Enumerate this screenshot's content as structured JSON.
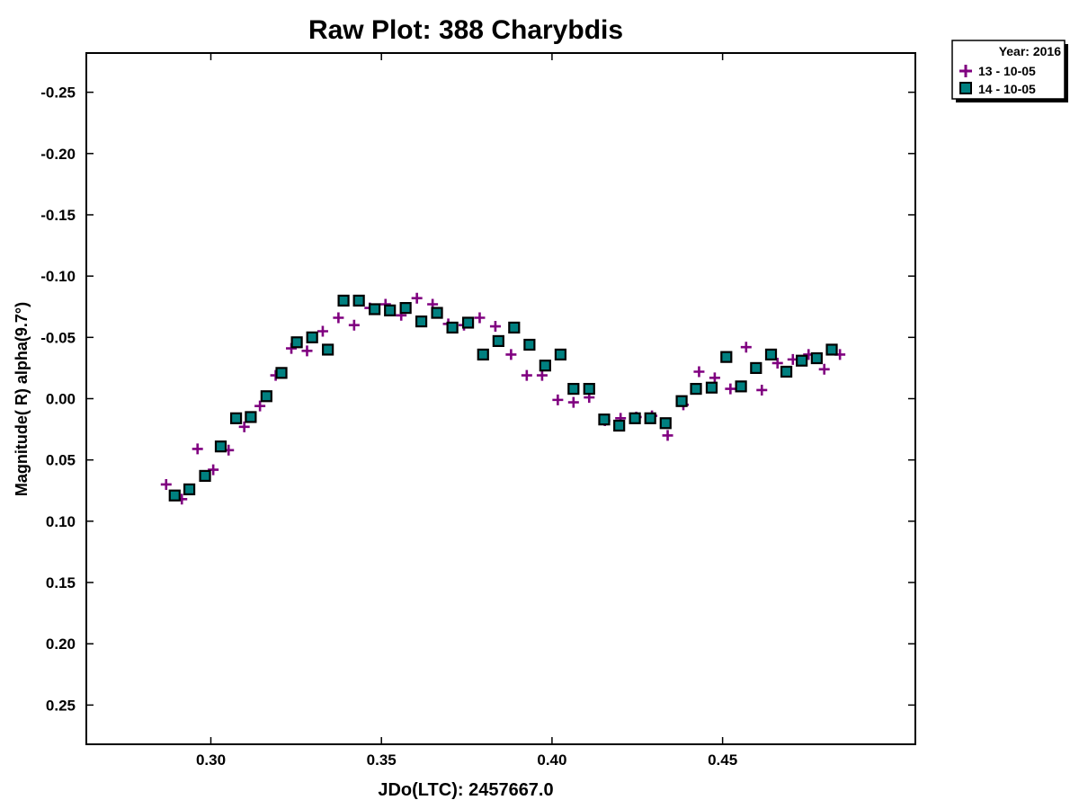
{
  "chart_data": {
    "type": "scatter",
    "title": "Raw Plot: 388 Charybdis",
    "xlabel": "JDo(LTC): 2457667.0",
    "ylabel": "Magnitude( R) alpha(9.7°)",
    "xlim": [
      0.2635,
      0.5065
    ],
    "ylim": [
      0.282,
      -0.282
    ],
    "y_inverted": true,
    "xticks": [
      {
        "value": 0.3,
        "label": "0.30"
      },
      {
        "value": 0.35,
        "label": "0.35"
      },
      {
        "value": 0.4,
        "label": "0.40"
      },
      {
        "value": 0.45,
        "label": "0.45"
      }
    ],
    "yticks": [
      {
        "value": -0.25,
        "label": "-0.25"
      },
      {
        "value": -0.2,
        "label": "-0.20"
      },
      {
        "value": -0.15,
        "label": "-0.15"
      },
      {
        "value": -0.1,
        "label": "-0.10"
      },
      {
        "value": -0.05,
        "label": "-0.05"
      },
      {
        "value": 0.0,
        "label": "0.00"
      },
      {
        "value": 0.05,
        "label": "0.05"
      },
      {
        "value": 0.1,
        "label": "0.10"
      },
      {
        "value": 0.15,
        "label": "0.15"
      },
      {
        "value": 0.2,
        "label": "0.20"
      },
      {
        "value": 0.25,
        "label": "0.25"
      }
    ],
    "grid": false,
    "legend": {
      "placement": "outside-top-right",
      "header": "Year: 2016",
      "entries": [
        "13 - 10-05",
        "14 - 10-05"
      ]
    },
    "series": [
      {
        "name": "13 - 10-05",
        "marker": "plus",
        "color": "#800080",
        "x": [
          0.2869,
          0.2915,
          0.2961,
          0.3007,
          0.3052,
          0.3098,
          0.3144,
          0.319,
          0.3236,
          0.3282,
          0.3328,
          0.3374,
          0.342,
          0.3466,
          0.3512,
          0.3558,
          0.3604,
          0.365,
          0.3696,
          0.3742,
          0.3788,
          0.3834,
          0.388,
          0.3926,
          0.3971,
          0.4017,
          0.4063,
          0.4109,
          0.4155,
          0.4201,
          0.4247,
          0.4293,
          0.4339,
          0.4385,
          0.4431,
          0.4477,
          0.4523,
          0.4569,
          0.4615,
          0.4661,
          0.4706,
          0.4752,
          0.4798,
          0.4844
        ],
        "y": [
          0.07,
          0.082,
          0.041,
          0.058,
          0.042,
          0.023,
          0.006,
          -0.019,
          -0.041,
          -0.039,
          -0.055,
          -0.066,
          -0.06,
          -0.074,
          -0.077,
          -0.068,
          -0.082,
          -0.077,
          -0.061,
          -0.06,
          -0.066,
          -0.059,
          -0.036,
          -0.019,
          -0.019,
          0.001,
          0.003,
          -0.001,
          0.018,
          0.016,
          0.015,
          0.014,
          0.03,
          0.005,
          -0.022,
          -0.017,
          -0.008,
          -0.042,
          -0.007,
          -0.029,
          -0.032,
          -0.036,
          -0.024,
          -0.036
        ]
      },
      {
        "name": "14 - 10-05",
        "marker": "square",
        "color": "#008080",
        "x": [
          0.2894,
          0.2937,
          0.2983,
          0.3029,
          0.3074,
          0.3117,
          0.3163,
          0.3207,
          0.3252,
          0.3297,
          0.3343,
          0.3389,
          0.3434,
          0.348,
          0.3525,
          0.3571,
          0.3617,
          0.3663,
          0.3708,
          0.3754,
          0.3798,
          0.3843,
          0.3889,
          0.3934,
          0.398,
          0.4025,
          0.4063,
          0.4109,
          0.4153,
          0.4197,
          0.4243,
          0.4288,
          0.4333,
          0.438,
          0.4422,
          0.4468,
          0.4511,
          0.4554,
          0.4598,
          0.4642,
          0.4687,
          0.4732,
          0.4776,
          0.482
        ],
        "y": [
          0.079,
          0.074,
          0.063,
          0.039,
          0.016,
          0.015,
          -0.002,
          -0.021,
          -0.046,
          -0.05,
          -0.04,
          -0.08,
          -0.08,
          -0.073,
          -0.072,
          -0.074,
          -0.063,
          -0.07,
          -0.058,
          -0.062,
          -0.036,
          -0.047,
          -0.058,
          -0.044,
          -0.027,
          -0.036,
          -0.008,
          -0.008,
          0.017,
          0.022,
          0.016,
          0.016,
          0.02,
          0.002,
          -0.008,
          -0.009,
          -0.034,
          -0.01,
          -0.025,
          -0.036,
          -0.022,
          -0.031,
          -0.033,
          -0.04
        ]
      }
    ]
  }
}
